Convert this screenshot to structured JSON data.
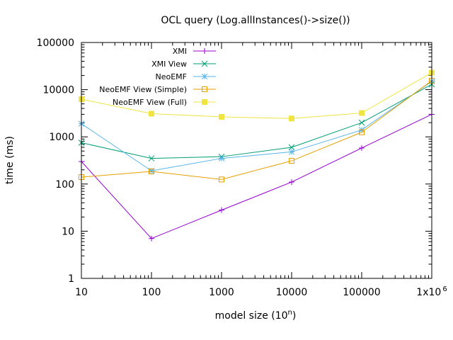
{
  "chart_data": {
    "type": "line",
    "title": "OCL query (Log.allInstances()->size())",
    "xlabel": {
      "base": "model size (10",
      "sup": "n",
      "close": ")"
    },
    "ylabel": "time (ms)",
    "xscale": "log",
    "yscale": "log",
    "xlim": [
      10,
      1000000
    ],
    "ylim": [
      1,
      100000
    ],
    "x": [
      10,
      100,
      1000,
      10000,
      100000,
      1000000
    ],
    "x_tick_labels": [
      {
        "value": 10,
        "text": "10"
      },
      {
        "value": 100,
        "text": "100"
      },
      {
        "value": 1000,
        "text": "1000"
      },
      {
        "value": 10000,
        "text": "10000"
      },
      {
        "value": 100000,
        "text": "100000"
      },
      {
        "value": 1000000,
        "text": "1x10",
        "sup": "6"
      }
    ],
    "y_tick_labels": [
      {
        "value": 1,
        "text": "1"
      },
      {
        "value": 10,
        "text": "10"
      },
      {
        "value": 100,
        "text": "100"
      },
      {
        "value": 1000,
        "text": "1000"
      },
      {
        "value": 10000,
        "text": "10000"
      },
      {
        "value": 100000,
        "text": "100000"
      }
    ],
    "grid": false,
    "legend_position": "top-left",
    "series": [
      {
        "name": "XMI",
        "color": "#9400d3",
        "marker": "plus",
        "values": [
          300,
          7,
          28,
          110,
          580,
          3000
        ]
      },
      {
        "name": "XMI View",
        "color": "#009e73",
        "marker": "cross",
        "values": [
          750,
          350,
          380,
          600,
          2000,
          13000
        ]
      },
      {
        "name": "NeoEMF",
        "color": "#56b4e9",
        "marker": "star",
        "values": [
          1900,
          190,
          350,
          480,
          1400,
          15000
        ]
      },
      {
        "name": "NeoEMF View (Simple)",
        "color": "#e69f00",
        "marker": "open-square",
        "values": [
          140,
          185,
          125,
          310,
          1250,
          15500
        ]
      },
      {
        "name": "NeoEMF View (Full)",
        "color": "#f0e442",
        "marker": "filled-square",
        "values": [
          6300,
          3100,
          2650,
          2450,
          3200,
          23000
        ]
      }
    ]
  }
}
